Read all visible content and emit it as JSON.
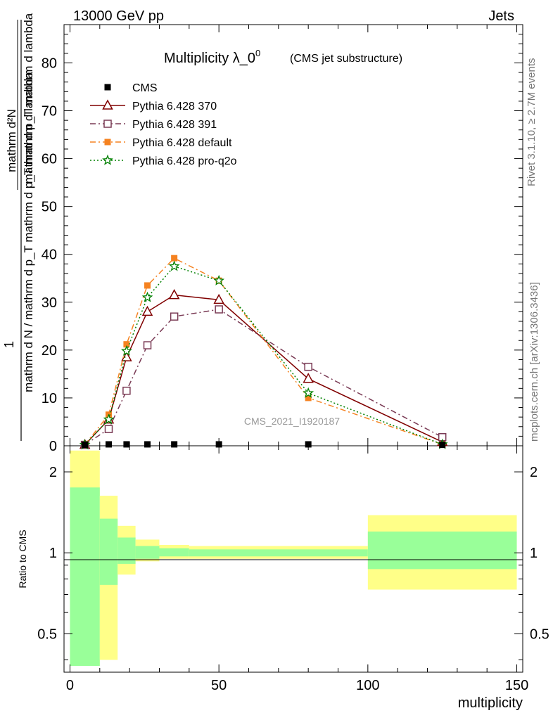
{
  "header": {
    "left": "13000 GeV pp",
    "right": "Jets"
  },
  "side_labels": {
    "rivet": "Rivet 3.1.10, ≥ 2.7M events",
    "mcplots": "mcplots.cern.ch [arXiv:1306.3436]"
  },
  "chart_data": {
    "type": "line",
    "title": "Multiplicity λ_0",
    "title_superscript": "0",
    "subtitle": "(CMS jet substructure)",
    "watermark": "CMS_2021_I1920187",
    "xlabel": "multiplicity",
    "ylabel_numerator": "1",
    "ylabel_denominator": "mathrm d N / mathrm d p_T mathrm d p_T mathrm d lambda",
    "ylabel_main": "mathrm d²N",
    "ylabel_main_denominator": "mathrm d p_T mathrm d lambda",
    "ratio_ylabel": "Ratio to CMS",
    "xlim": [
      -2,
      152
    ],
    "ylim": [
      0,
      88
    ],
    "xticks": [
      "0",
      "50",
      "100",
      "150"
    ],
    "yticks": [
      "0",
      "10",
      "20",
      "30",
      "40",
      "50",
      "60",
      "70",
      "80"
    ],
    "ratio_yticks": [
      "0.5",
      "1",
      "2"
    ],
    "grid": false,
    "legend_position": "top-left",
    "cms": {
      "name": "CMS",
      "x": [
        5,
        13,
        19,
        26,
        35,
        50,
        80,
        125
      ],
      "y": [
        0.2,
        0.3,
        0.3,
        0.3,
        0.3,
        0.3,
        0.3,
        0.2
      ]
    },
    "series": [
      {
        "name": "Pythia 6.428 370",
        "color": "#800000",
        "marker": "triangle-open",
        "x": [
          5,
          13,
          19,
          26,
          35,
          50,
          80,
          125
        ],
        "y": [
          0.2,
          5.5,
          18.5,
          28.0,
          31.5,
          30.5,
          14.0,
          0.8
        ]
      },
      {
        "name": "Pythia 6.428 391",
        "color": "#7a3b55",
        "marker": "square-open",
        "x": [
          5,
          13,
          19,
          26,
          35,
          50,
          80,
          125
        ],
        "y": [
          0.2,
          3.5,
          11.5,
          21.0,
          27.0,
          28.5,
          16.5,
          1.8
        ]
      },
      {
        "name": "Pythia 6.428 default",
        "color": "#f58220",
        "marker": "square-filled",
        "x": [
          5,
          13,
          19,
          26,
          35,
          50,
          80,
          125
        ],
        "y": [
          0.2,
          6.5,
          21.2,
          33.5,
          39.2,
          34.5,
          10.0,
          0.3
        ]
      },
      {
        "name": "Pythia 6.428 pro-q2o",
        "color": "#008000",
        "marker": "star",
        "x": [
          5,
          13,
          19,
          26,
          35,
          50,
          80,
          125
        ],
        "y": [
          0.2,
          5.5,
          19.8,
          31.0,
          37.5,
          34.5,
          11.0,
          0.3
        ]
      }
    ],
    "ratio_bands": {
      "bins": [
        [
          0,
          10
        ],
        [
          10,
          16
        ],
        [
          16,
          22
        ],
        [
          22,
          30
        ],
        [
          30,
          40
        ],
        [
          40,
          60
        ],
        [
          60,
          100
        ],
        [
          100,
          150
        ]
      ],
      "inner_lo": [
        0.38,
        0.76,
        0.91,
        0.95,
        0.97,
        0.97,
        0.97,
        0.87
      ],
      "inner_hi": [
        1.75,
        1.34,
        1.14,
        1.06,
        1.04,
        1.03,
        1.03,
        1.2
      ],
      "outer_lo": [
        0.38,
        0.4,
        0.83,
        0.93,
        0.95,
        0.95,
        0.95,
        0.73
      ],
      "outer_hi": [
        2.4,
        1.63,
        1.26,
        1.12,
        1.07,
        1.06,
        1.06,
        1.38
      ],
      "inner_color": "#99ff99",
      "outer_color": "#ffff88"
    }
  }
}
